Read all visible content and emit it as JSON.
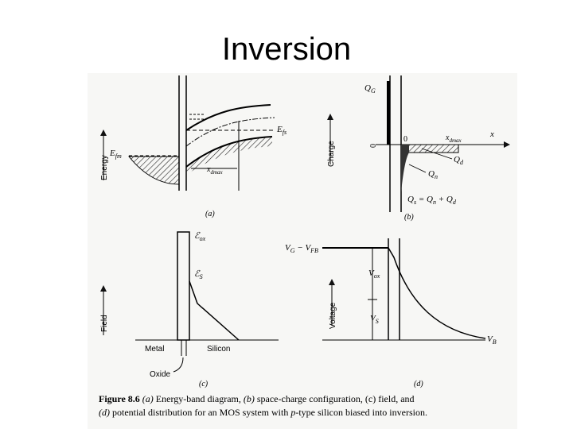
{
  "slide": {
    "title": "Inversion"
  },
  "panel_a": {
    "tag": "(a)",
    "ylabel": "Energy",
    "ef_metal": "E",
    "ef_metal_sub": "fm",
    "ef_semi": "E",
    "ef_semi_sub": "fs",
    "xdmax": "x",
    "xdmax_sub": "dmax"
  },
  "panel_b": {
    "tag": "(b)",
    "ylabel": "Charge",
    "qg": "Q",
    "qg_sub": "G",
    "zero_left": "0",
    "zero_origin": "0",
    "x_axis": "x",
    "xdmax": "x",
    "xdmax_sub": "dmax",
    "qd": "Q",
    "qd_sub": "d",
    "qn": "Q",
    "qn_sub": "n",
    "eq": "Q",
    "eq_s": "s",
    "eq_mid": " = Q",
    "eq_n": "n",
    "eq_plus": " + Q",
    "eq_d": "d"
  },
  "panel_c": {
    "tag": "(c)",
    "ylabel": "Field",
    "eox": "ℰ",
    "eox_sub": "ox",
    "es": "ℰ",
    "es_sub": "S",
    "metal": "Metal",
    "silicon": "Silicon",
    "oxide": "Oxide"
  },
  "panel_d": {
    "tag": "(d)",
    "ylabel": "Voltage",
    "vg": "V",
    "vg_sub": "G",
    "vg_mid": " − V",
    "vg_sub2": "FB",
    "vox": "V",
    "vox_sub": "ox",
    "vs": "V",
    "vs_sub": "S",
    "vb": "V",
    "vb_sub": "B"
  },
  "caption": {
    "fig": "Figure 8.6",
    "l1_a": "(a)",
    "l1_t1": " Energy-band diagram, ",
    "l1_b": "(b)",
    "l1_t2": " space-charge configuration, (c) field, and",
    "l2_d": "(d)",
    "l2_t1": " potential distribution for an MOS system with ",
    "l2_p": "p",
    "l2_t2": "-type silicon biased into inversion."
  }
}
